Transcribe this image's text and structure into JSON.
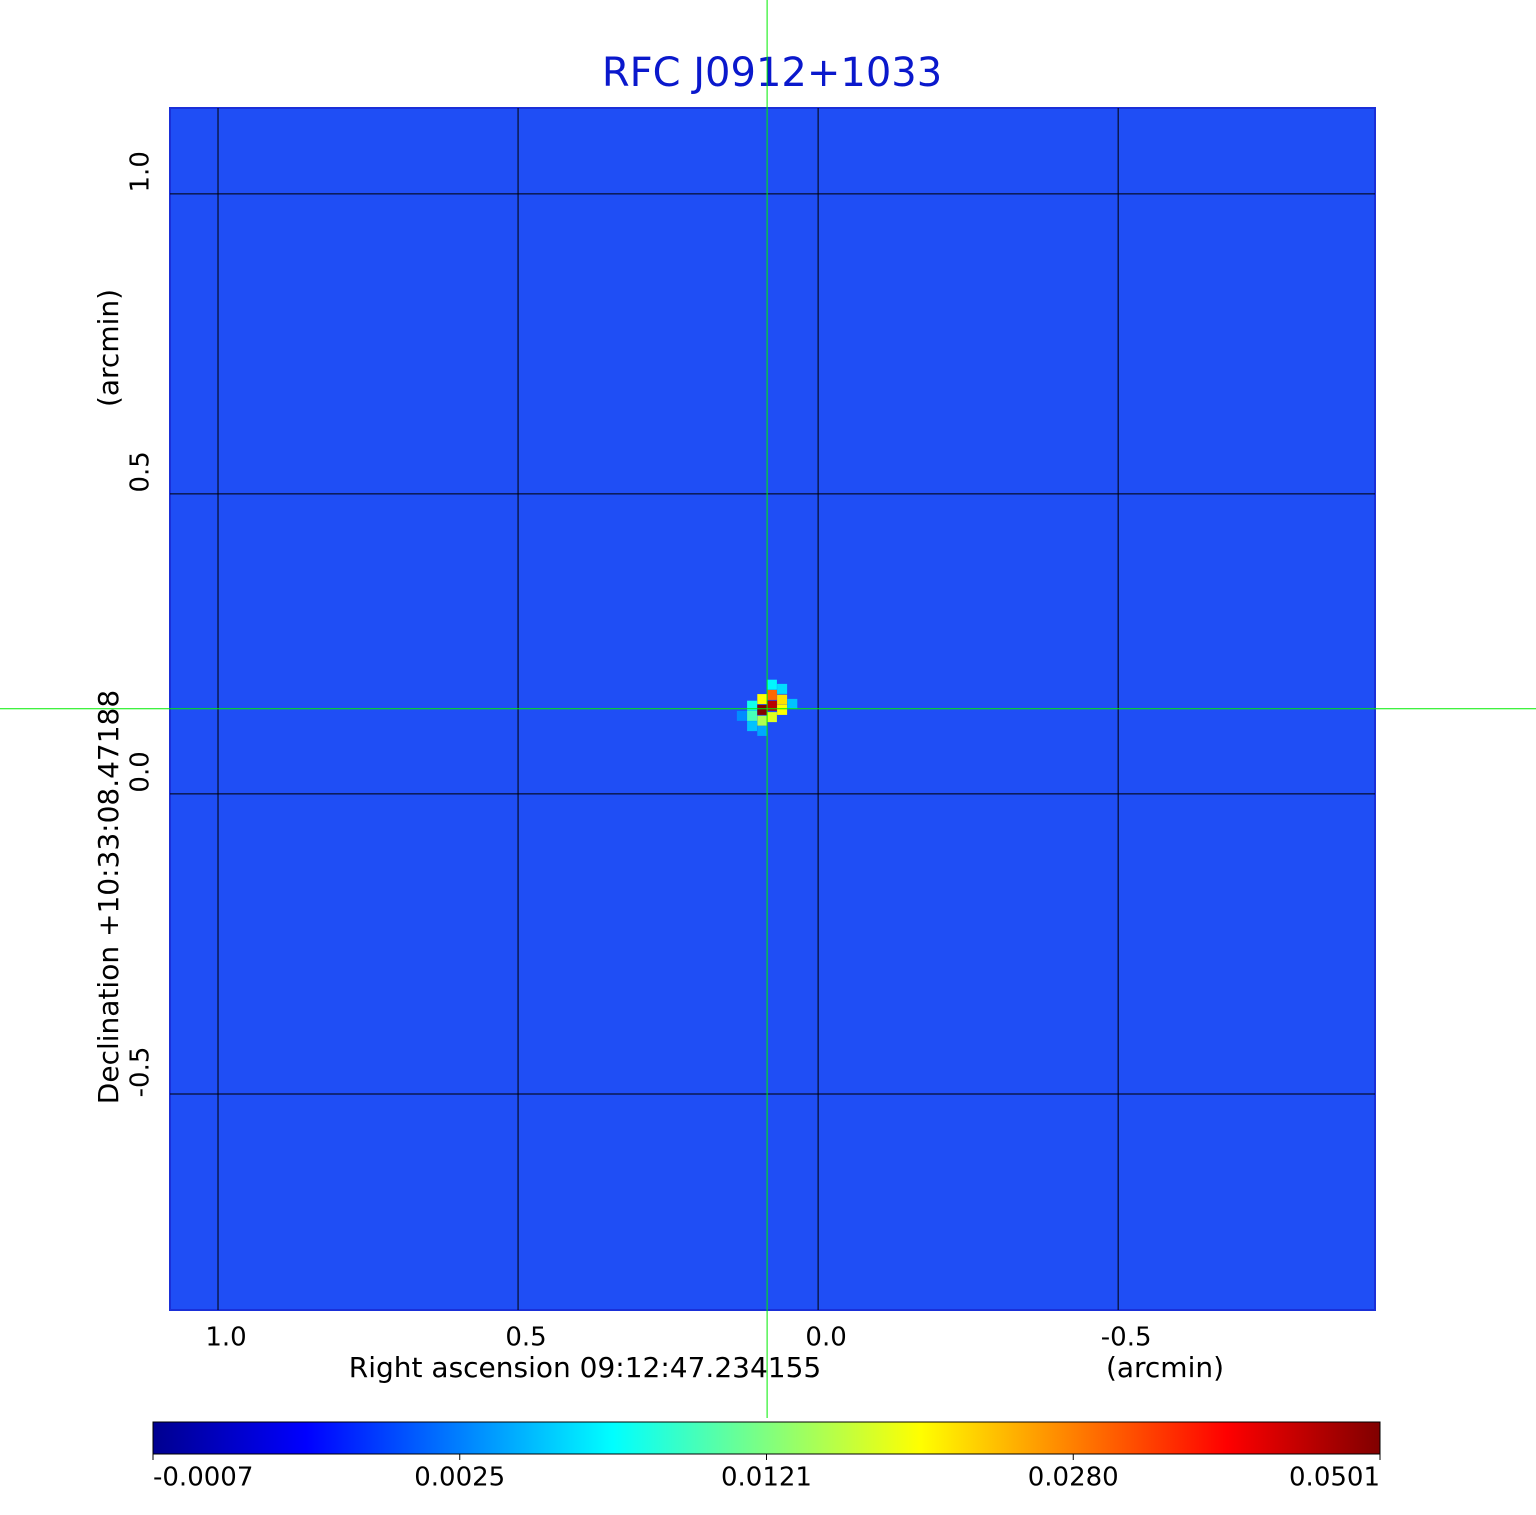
{
  "chart_data": {
    "type": "image",
    "title": "RFC J0912+1033",
    "x_label": "Right ascension  09:12:47.234155",
    "x_unit": "(arcmin)",
    "y_label": "Declination  +10:33:08.47188",
    "y_unit": "(arcmin)",
    "xlim": [
      1.08,
      -0.928
    ],
    "ylim": [
      -0.86,
      1.143
    ],
    "xticks": [
      {
        "value": 1,
        "label": "1.0"
      },
      0.5,
      {
        "value": 0,
        "label": "0.0"
      },
      -0.5
    ],
    "yticks": [
      {
        "value": -0.5,
        "label": "-0.5"
      },
      {
        "value": 0,
        "label": "0.0"
      },
      0.5,
      {
        "value": 1,
        "label": "1.0"
      }
    ],
    "grid": true,
    "crosshair": {
      "x": 0.085,
      "y": 0.142,
      "color": "#00ee00"
    },
    "pixel_size": 0.0167,
    "pixels": {
      "x": [
        0.077,
        0.093,
        0.077,
        0.06,
        0.06,
        0.093,
        0.11,
        0.11,
        0.077,
        0.093,
        0.077,
        0.06,
        0.043,
        0.11,
        0.093,
        0.127
      ],
      "y": [
        0.147,
        0.14,
        0.165,
        0.157,
        0.14,
        0.122,
        0.13,
        0.147,
        0.128,
        0.158,
        0.182,
        0.175,
        0.15,
        0.113,
        0.105,
        0.13
      ],
      "values": [
        0.045,
        0.05,
        0.03,
        0.022,
        0.02,
        0.015,
        0.01,
        0.008,
        0.018,
        0.02,
        0.007,
        0.006,
        0.005,
        0.005,
        0.004,
        0.003
      ]
    },
    "colorbar_ticks": [
      -0.0007,
      0.0025,
      0.0121,
      {
        "value": 0.028,
        "label": "0.0280"
      },
      0.0501
    ]
  }
}
